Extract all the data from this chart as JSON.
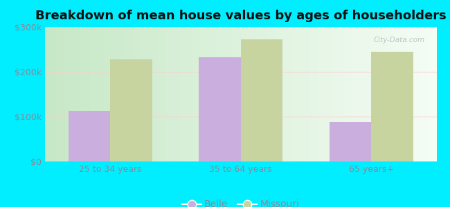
{
  "title": "Breakdown of mean house values by ages of householders",
  "categories": [
    "25 to 34 years",
    "35 to 64 years",
    "65 years+"
  ],
  "belle_values": [
    113000,
    232000,
    88000
  ],
  "missouri_values": [
    228000,
    272000,
    245000
  ],
  "belle_color": "#c9aede",
  "missouri_color": "#c8d4a0",
  "belle_label": "Belle",
  "missouri_label": "Missouri",
  "ylim": [
    0,
    300000
  ],
  "yticks": [
    0,
    100000,
    200000,
    300000
  ],
  "ytick_labels": [
    "$0",
    "$100k",
    "$200k",
    "$300k"
  ],
  "background_color": "#00eeff",
  "plot_bg_left": "#c8eac8",
  "plot_bg_right": "#f5fff5",
  "title_fontsize": 13,
  "tick_fontsize": 9,
  "legend_fontsize": 10,
  "bar_width": 0.32,
  "watermark": "City-Data.com",
  "tick_color": "#888899",
  "title_color": "#111111"
}
